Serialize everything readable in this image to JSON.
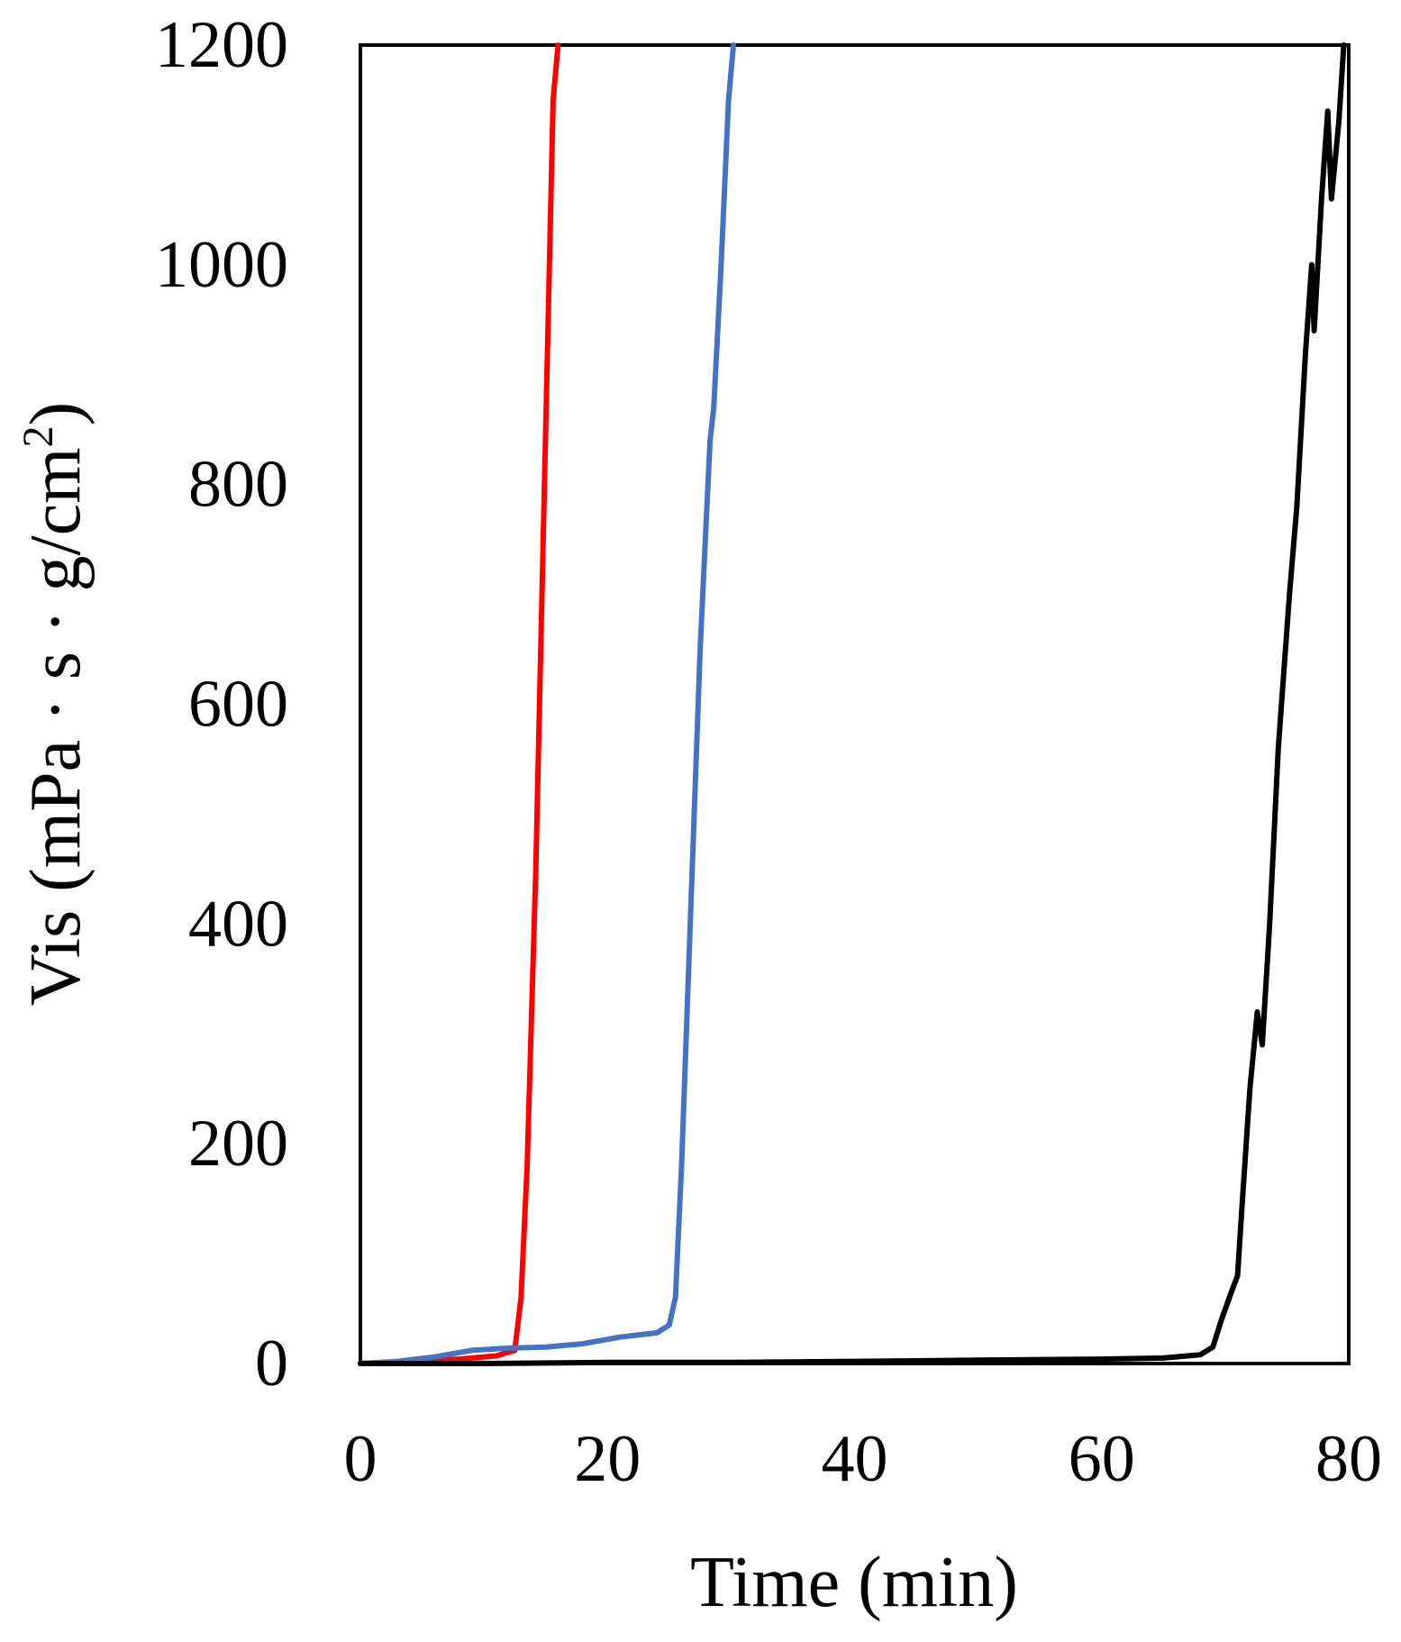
{
  "chart_data": {
    "type": "line",
    "title": "",
    "xlabel": "Time (min)",
    "ylabel": {
      "text": "Vis (mPa · s · g/cm",
      "superscript": "2",
      "suffix": ")"
    },
    "xlim": [
      0,
      80
    ],
    "ylim": [
      0,
      1200
    ],
    "xticks": [
      0,
      20,
      40,
      60,
      80
    ],
    "yticks": [
      0,
      200,
      400,
      600,
      800,
      1000,
      1200
    ],
    "grid": false,
    "legend": "none",
    "series": [
      {
        "color": "#ff0000",
        "points": [
          [
            0,
            0
          ],
          [
            4,
            2
          ],
          [
            8,
            4
          ],
          [
            11,
            7
          ],
          [
            12.5,
            12
          ],
          [
            13,
            60
          ],
          [
            13.5,
            180
          ],
          [
            14.2,
            450
          ],
          [
            14.8,
            750
          ],
          [
            15.3,
            1000
          ],
          [
            15.6,
            1150
          ],
          [
            16,
            1200
          ]
        ]
      },
      {
        "color": "#4472c4",
        "points": [
          [
            0,
            0
          ],
          [
            3,
            2
          ],
          [
            6,
            6
          ],
          [
            9,
            12
          ],
          [
            12,
            14
          ],
          [
            15,
            15
          ],
          [
            18,
            18
          ],
          [
            21,
            24
          ],
          [
            24,
            28
          ],
          [
            25,
            35
          ],
          [
            25.5,
            60
          ],
          [
            26,
            180
          ],
          [
            26.7,
            400
          ],
          [
            27.5,
            650
          ],
          [
            28.3,
            840
          ],
          [
            28.6,
            870
          ],
          [
            29.2,
            1000
          ],
          [
            29.8,
            1150
          ],
          [
            30.2,
            1200
          ]
        ]
      },
      {
        "color": "#000000",
        "points": [
          [
            0,
            0
          ],
          [
            10,
            0
          ],
          [
            20,
            1
          ],
          [
            30,
            1
          ],
          [
            40,
            2
          ],
          [
            50,
            3
          ],
          [
            60,
            4
          ],
          [
            65,
            5
          ],
          [
            68,
            8
          ],
          [
            69,
            15
          ],
          [
            69.7,
            40
          ],
          [
            70.5,
            65
          ],
          [
            71,
            80
          ],
          [
            71.4,
            150
          ],
          [
            72,
            250
          ],
          [
            72.6,
            320
          ],
          [
            73,
            290
          ],
          [
            73.6,
            400
          ],
          [
            74.3,
            560
          ],
          [
            75.2,
            700
          ],
          [
            75.8,
            780
          ],
          [
            76.5,
            920
          ],
          [
            77,
            1000
          ],
          [
            77.2,
            940
          ],
          [
            77.8,
            1060
          ],
          [
            78.3,
            1140
          ],
          [
            78.6,
            1060
          ],
          [
            79.2,
            1130
          ],
          [
            79.6,
            1200
          ]
        ]
      }
    ]
  }
}
